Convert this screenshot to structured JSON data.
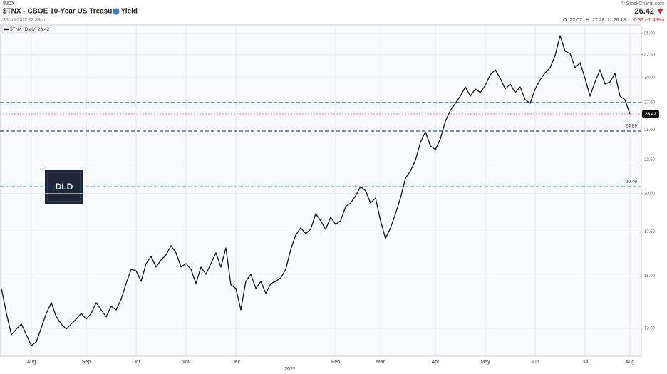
{
  "chart_data": {
    "type": "line",
    "exchange": "INDX",
    "title": "$TNX - CBOE 10-Year US Treasury Yield",
    "subtitle": "30-Jul-2022 12:33pm",
    "copyright": "© StockCharts.com",
    "last_price": "26.42",
    "change": "-0.39 (-1.45%)",
    "open": "O: 27.07",
    "high": "H: 27.28",
    "low": "L: 26.18",
    "legend": "$TNX (Daily) 26.42",
    "logo": "DLD",
    "year_label": "2022",
    "categories": [
      null,
      null,
      null,
      null,
      null,
      null,
      "Aug",
      null,
      null,
      null,
      null,
      null,
      null,
      null,
      null,
      null,
      null,
      "Sep",
      null,
      null,
      null,
      null,
      null,
      null,
      null,
      null,
      null,
      "Oct",
      null,
      null,
      null,
      null,
      null,
      null,
      null,
      null,
      null,
      "Nov",
      null,
      null,
      null,
      null,
      null,
      null,
      null,
      null,
      null,
      "Dec",
      null,
      null,
      null,
      null,
      null,
      null,
      null,
      null,
      null,
      null,
      null,
      null,
      null,
      null,
      null,
      null,
      null,
      null,
      null,
      "Feb",
      null,
      null,
      null,
      null,
      null,
      null,
      null,
      null,
      "Mar",
      null,
      null,
      null,
      null,
      null,
      null,
      null,
      null,
      null,
      null,
      "Apr",
      null,
      null,
      null,
      null,
      null,
      null,
      null,
      null,
      null,
      "May",
      null,
      null,
      null,
      null,
      null,
      null,
      null,
      null,
      null,
      "Jun",
      null,
      null,
      null,
      null,
      null,
      null,
      null,
      null,
      null,
      "Jul",
      null,
      null,
      null,
      null,
      null,
      null,
      null,
      null,
      "Aug"
    ],
    "series": [
      {
        "name": "$TNX",
        "color": "#111111",
        "values": [
          14.37,
          13.17,
          12.22,
          12.47,
          12.69,
          12.22,
          11.77,
          11.92,
          12.53,
          13.17,
          13.67,
          13.01,
          12.69,
          12.47,
          12.69,
          12.91,
          13.17,
          12.91,
          13.17,
          13.67,
          13.33,
          13.01,
          13.5,
          13.33,
          13.84,
          14.62,
          15.36,
          15.28,
          14.73,
          15.67,
          16.07,
          15.48,
          15.87,
          16.15,
          16.68,
          16.27,
          15.48,
          15.67,
          15.36,
          14.62,
          15.48,
          15.1,
          15.67,
          16.27,
          15.48,
          16.55,
          14.55,
          14.37,
          13.33,
          14.73,
          15.1,
          14.37,
          14.73,
          14.12,
          14.62,
          14.73,
          14.91,
          15.36,
          16.47,
          17.31,
          17.75,
          17.4,
          17.66,
          18.65,
          18.2,
          17.66,
          18.42,
          17.97,
          18.2,
          19.12,
          19.36,
          19.85,
          20.5,
          20.2,
          19.36,
          19.7,
          18.2,
          17.1,
          17.75,
          18.65,
          19.7,
          21.12,
          21.65,
          22.48,
          23.92,
          24.83,
          23.63,
          23.33,
          24.22,
          25.77,
          26.75,
          27.43,
          28.12,
          29.04,
          28.12,
          28.83,
          28.47,
          29.19,
          30.3,
          30.83,
          29.93,
          28.83,
          29.33,
          28.47,
          29.04,
          27.77,
          27.43,
          28.83,
          29.77,
          30.52,
          31.06,
          32.4,
          34.74,
          32.89,
          32.64,
          31.06,
          31.6,
          29.93,
          28.12,
          29.55,
          30.83,
          29.33,
          29.55,
          30.45,
          28.12,
          27.77,
          26.42
        ]
      }
    ],
    "ylim": [
      11.34,
      36.06
    ],
    "log_scale": true,
    "yticks": [
      {
        "value": 12.5,
        "label": "12.50"
      },
      {
        "value": 15,
        "label": "15.00"
      },
      {
        "value": 17.5,
        "label": "17.50"
      },
      {
        "value": 20,
        "label": "20.00"
      },
      {
        "value": 22.5,
        "label": "22.50"
      },
      {
        "value": 25,
        "label": "25.00"
      },
      {
        "value": 27.5,
        "label": "27.50"
      },
      {
        "value": 30,
        "label": "30.00"
      },
      {
        "value": 32.5,
        "label": "32.50"
      },
      {
        "value": 35,
        "label": "35.00"
      }
    ],
    "grid": true,
    "levels": [
      {
        "value": 27.5,
        "color": "#1f4fa0"
      },
      {
        "value": 24.89,
        "label": "24.89",
        "color": "#1f4fa0"
      },
      {
        "value": 20.49,
        "label": "20.49",
        "color": "#1f4fa0"
      }
    ],
    "price_line": {
      "value": 26.42,
      "label": "26.42",
      "color": "#e06a6a"
    }
  }
}
